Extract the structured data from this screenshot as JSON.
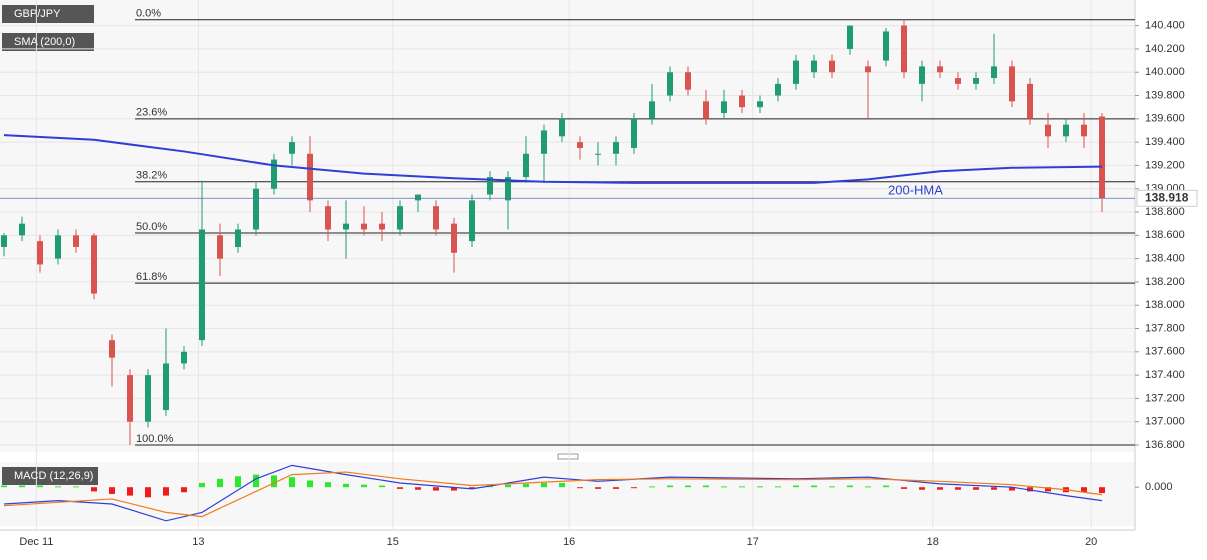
{
  "chart_data": {
    "type": "candlestick",
    "symbol": "GBP/JPY",
    "indicator": "SMA (200,0)",
    "up_color": "#1f9d6e",
    "down_color": "#d9534f",
    "candles": [
      [
        138.5,
        138.62,
        138.42,
        138.6
      ],
      [
        138.6,
        138.76,
        138.55,
        138.7
      ],
      [
        138.55,
        138.6,
        138.28,
        138.35
      ],
      [
        138.4,
        138.65,
        138.35,
        138.6
      ],
      [
        138.6,
        138.65,
        138.45,
        138.5
      ],
      [
        138.6,
        138.62,
        138.05,
        138.1
      ],
      [
        137.7,
        137.75,
        137.3,
        137.55
      ],
      [
        137.4,
        137.45,
        136.8,
        137.0
      ],
      [
        137.0,
        137.45,
        136.95,
        137.4
      ],
      [
        137.1,
        137.8,
        137.05,
        137.5
      ],
      [
        137.5,
        137.65,
        137.45,
        137.6
      ],
      [
        137.7,
        139.07,
        137.65,
        138.65
      ],
      [
        138.6,
        138.7,
        138.25,
        138.4
      ],
      [
        138.5,
        138.7,
        138.45,
        138.65
      ],
      [
        138.65,
        139.05,
        138.6,
        139.0
      ],
      [
        139.0,
        139.3,
        138.95,
        139.25
      ],
      [
        139.3,
        139.45,
        139.2,
        139.4
      ],
      [
        139.3,
        139.45,
        138.8,
        138.9
      ],
      [
        138.85,
        138.9,
        138.55,
        138.65
      ],
      [
        138.65,
        138.9,
        138.4,
        138.7
      ],
      [
        138.7,
        138.85,
        138.6,
        138.65
      ],
      [
        138.7,
        138.8,
        138.55,
        138.65
      ],
      [
        138.65,
        138.9,
        138.6,
        138.85
      ],
      [
        138.9,
        138.95,
        138.8,
        138.95
      ],
      [
        138.85,
        138.9,
        138.6,
        138.65
      ],
      [
        138.7,
        138.75,
        138.28,
        138.45
      ],
      [
        138.55,
        138.95,
        138.5,
        138.9
      ],
      [
        138.95,
        139.15,
        138.9,
        139.1
      ],
      [
        138.9,
        139.15,
        138.65,
        139.1
      ],
      [
        139.1,
        139.45,
        139.05,
        139.3
      ],
      [
        139.3,
        139.55,
        139.05,
        139.5
      ],
      [
        139.45,
        139.65,
        139.4,
        139.6
      ],
      [
        139.4,
        139.45,
        139.25,
        139.35
      ],
      [
        139.3,
        139.4,
        139.2,
        139.3
      ],
      [
        139.3,
        139.45,
        139.2,
        139.4
      ],
      [
        139.35,
        139.65,
        139.3,
        139.6
      ],
      [
        139.6,
        139.9,
        139.55,
        139.75
      ],
      [
        139.8,
        140.05,
        139.75,
        140.0
      ],
      [
        140.0,
        140.05,
        139.8,
        139.85
      ],
      [
        139.75,
        139.85,
        139.55,
        139.6
      ],
      [
        139.65,
        139.85,
        139.6,
        139.75
      ],
      [
        139.8,
        139.85,
        139.65,
        139.7
      ],
      [
        139.7,
        139.8,
        139.65,
        139.75
      ],
      [
        139.8,
        139.95,
        139.75,
        139.9
      ],
      [
        139.9,
        140.15,
        139.85,
        140.1
      ],
      [
        140.0,
        140.15,
        139.95,
        140.1
      ],
      [
        140.1,
        140.15,
        139.95,
        140.0
      ],
      [
        140.2,
        140.4,
        140.15,
        140.4
      ],
      [
        140.05,
        140.1,
        139.6,
        140.0
      ],
      [
        140.1,
        140.38,
        140.05,
        140.35
      ],
      [
        140.4,
        140.45,
        139.95,
        140.0
      ],
      [
        139.9,
        140.1,
        139.75,
        140.05
      ],
      [
        140.05,
        140.1,
        139.95,
        140.0
      ],
      [
        139.95,
        140.0,
        139.85,
        139.9
      ],
      [
        139.9,
        140.0,
        139.85,
        139.95
      ],
      [
        139.95,
        140.33,
        139.9,
        140.05
      ],
      [
        140.05,
        140.1,
        139.7,
        139.75
      ],
      [
        139.9,
        139.95,
        139.55,
        139.6
      ],
      [
        139.55,
        139.65,
        139.35,
        139.45
      ],
      [
        139.45,
        139.6,
        139.4,
        139.55
      ],
      [
        139.55,
        139.65,
        139.35,
        139.45
      ],
      [
        139.62,
        139.65,
        138.8,
        138.92
      ]
    ],
    "ylim": [
      136.74,
      140.62
    ],
    "yticks": [
      {
        "value": 136.8,
        "label": "136.800"
      },
      {
        "value": 137.0,
        "label": "137.000"
      },
      {
        "value": 137.2,
        "label": "137.200"
      },
      {
        "value": 137.4,
        "label": "137.400"
      },
      {
        "value": 137.6,
        "label": "137.600"
      },
      {
        "value": 137.8,
        "label": "137.800"
      },
      {
        "value": 138.0,
        "label": "138.000"
      },
      {
        "value": 138.2,
        "label": "138.200"
      },
      {
        "value": 138.4,
        "label": "138.400"
      },
      {
        "value": 138.6,
        "label": "138.600"
      },
      {
        "value": 138.8,
        "label": "138.800"
      },
      {
        "value": 139.0,
        "label": "139.000"
      },
      {
        "value": 139.2,
        "label": "139.200"
      },
      {
        "value": 139.4,
        "label": "139.400"
      },
      {
        "value": 139.6,
        "label": "139.600"
      },
      {
        "value": 139.8,
        "label": "139.800"
      },
      {
        "value": 140.0,
        "label": "140.000"
      },
      {
        "value": 140.2,
        "label": "140.200"
      },
      {
        "value": 140.4,
        "label": "140.400"
      }
    ],
    "xticks": [
      {
        "value": 1.8,
        "label": "Dec 11"
      },
      {
        "value": 10.8,
        "label": "13"
      },
      {
        "value": 21.6,
        "label": "15"
      },
      {
        "value": 31.4,
        "label": "16"
      },
      {
        "value": 41.6,
        "label": "17"
      },
      {
        "value": 51.6,
        "label": "18"
      },
      {
        "value": 60.4,
        "label": "20"
      }
    ],
    "fib_levels": [
      {
        "label": "0.0%",
        "value": 140.45
      },
      {
        "label": "23.6%",
        "value": 139.6
      },
      {
        "label": "38.2%",
        "value": 139.06
      },
      {
        "label": "50.0%",
        "value": 138.62
      },
      {
        "label": "61.8%",
        "value": 138.19
      },
      {
        "label": "100.0%",
        "value": 136.8
      }
    ],
    "sma": {
      "name": "200-HMA",
      "color": "#2f3fd6",
      "x": [
        0,
        5,
        10,
        15,
        20,
        25,
        30,
        35,
        40,
        45,
        48,
        52,
        56,
        61
      ],
      "values": [
        139.46,
        139.42,
        139.32,
        139.2,
        139.13,
        139.09,
        139.06,
        139.05,
        139.05,
        139.05,
        139.08,
        139.15,
        139.18,
        139.19
      ]
    },
    "last_price": {
      "value": 138.918,
      "label": "138.918"
    },
    "macd": {
      "title": "MACD (12,26,9)",
      "ylim": [
        -0.45,
        0.3
      ],
      "yticks": [
        {
          "value": 0,
          "label": "0.000"
        }
      ],
      "histogram": [
        0.02,
        0.02,
        0.02,
        0.01,
        0.01,
        -0.05,
        -0.08,
        -0.1,
        -0.12,
        -0.1,
        -0.06,
        0.05,
        0.1,
        0.13,
        0.15,
        0.14,
        0.12,
        0.08,
        0.06,
        0.04,
        0.03,
        0.02,
        -0.02,
        -0.03,
        -0.04,
        -0.04,
        -0.02,
        0.02,
        0.03,
        0.04,
        0.05,
        0.05,
        -0.01,
        -0.02,
        -0.02,
        -0.01,
        0.01,
        0.02,
        0.02,
        0.02,
        0.01,
        0.01,
        0.01,
        0.01,
        0.02,
        0.02,
        0.01,
        0.02,
        0.01,
        0.02,
        -0.02,
        -0.03,
        -0.03,
        -0.03,
        -0.03,
        -0.03,
        -0.04,
        -0.05,
        -0.05,
        -0.06,
        -0.06,
        -0.07
      ],
      "macd_line": {
        "color": "#2f3fd6",
        "x": [
          0,
          3,
          6,
          9,
          11,
          14,
          16,
          19,
          22,
          26,
          30,
          33,
          37,
          44,
          48,
          52,
          56,
          59,
          61
        ],
        "values": [
          -0.2,
          -0.16,
          -0.2,
          -0.4,
          -0.3,
          0.1,
          0.26,
          0.15,
          0.05,
          -0.02,
          0.12,
          0.07,
          0.12,
          0.1,
          0.12,
          0.04,
          0.0,
          -0.1,
          -0.16
        ]
      },
      "signal_line": {
        "color": "#f07b1a",
        "x": [
          0,
          3,
          6,
          9,
          11,
          14,
          16,
          19,
          22,
          26,
          30,
          33,
          37,
          44,
          48,
          52,
          56,
          59,
          61
        ],
        "values": [
          -0.22,
          -0.18,
          -0.14,
          -0.3,
          -0.35,
          -0.05,
          0.15,
          0.18,
          0.1,
          0.02,
          0.06,
          0.09,
          0.1,
          0.09,
          0.1,
          0.07,
          0.03,
          -0.03,
          -0.09
        ]
      }
    }
  }
}
